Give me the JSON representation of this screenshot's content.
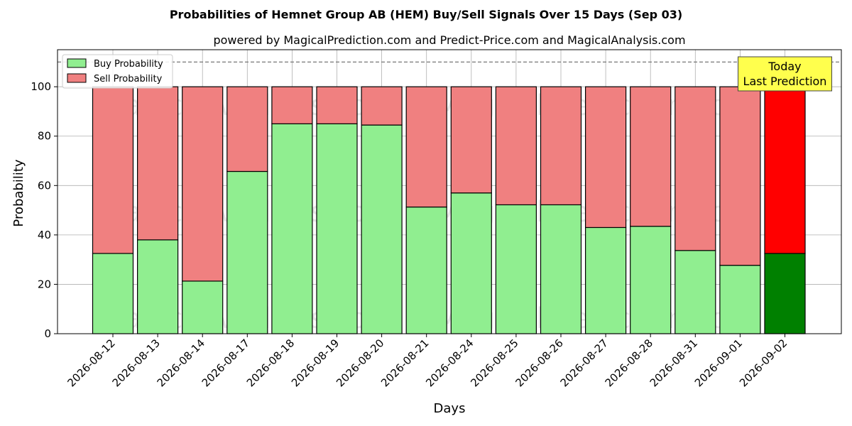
{
  "chart_data": {
    "type": "bar",
    "stacked": true,
    "title": "Probabilities of Hemnet Group AB (HEM) Buy/Sell Signals Over 15 Days (Sep 03)",
    "subtitle": "powered by MagicalPrediction.com and Predict-Price.com and MagicalAnalysis.com",
    "xlabel": "Days",
    "ylabel": "Probability",
    "ylim": [
      0,
      115
    ],
    "yticks": [
      0,
      20,
      40,
      60,
      80,
      100
    ],
    "grid": true,
    "legend_position": "top-left",
    "reference_line": 110,
    "categories": [
      "2026-08-12",
      "2026-08-13",
      "2026-08-14",
      "2026-08-17",
      "2026-08-18",
      "2026-08-19",
      "2026-08-20",
      "2026-08-21",
      "2026-08-24",
      "2026-08-25",
      "2026-08-26",
      "2026-08-27",
      "2026-08-28",
      "2026-08-31",
      "2026-09-01",
      "2026-09-02"
    ],
    "series": [
      {
        "name": "Buy Probability",
        "color": "#90ee90",
        "values": [
          32.5,
          38,
          21.3,
          65.7,
          85,
          85,
          84.5,
          51.3,
          57,
          52.2,
          52.2,
          43,
          43.5,
          33.7,
          27.7,
          32.5
        ]
      },
      {
        "name": "Sell Probability",
        "color": "#f08080",
        "values": [
          67.5,
          62,
          78.7,
          34.3,
          15,
          15,
          15.5,
          48.7,
          43,
          47.8,
          47.8,
          57,
          56.5,
          66.3,
          72.3,
          67.5
        ]
      }
    ],
    "highlight": {
      "index": 15,
      "buy_color": "#008000",
      "sell_color": "#ff0000",
      "label_line1": "Today",
      "label_line2": "Last Prediction",
      "box_color": "#ffff4d"
    },
    "watermarks": [
      "MagicalAnalysis.com",
      "MagicalPrediction.com"
    ]
  }
}
